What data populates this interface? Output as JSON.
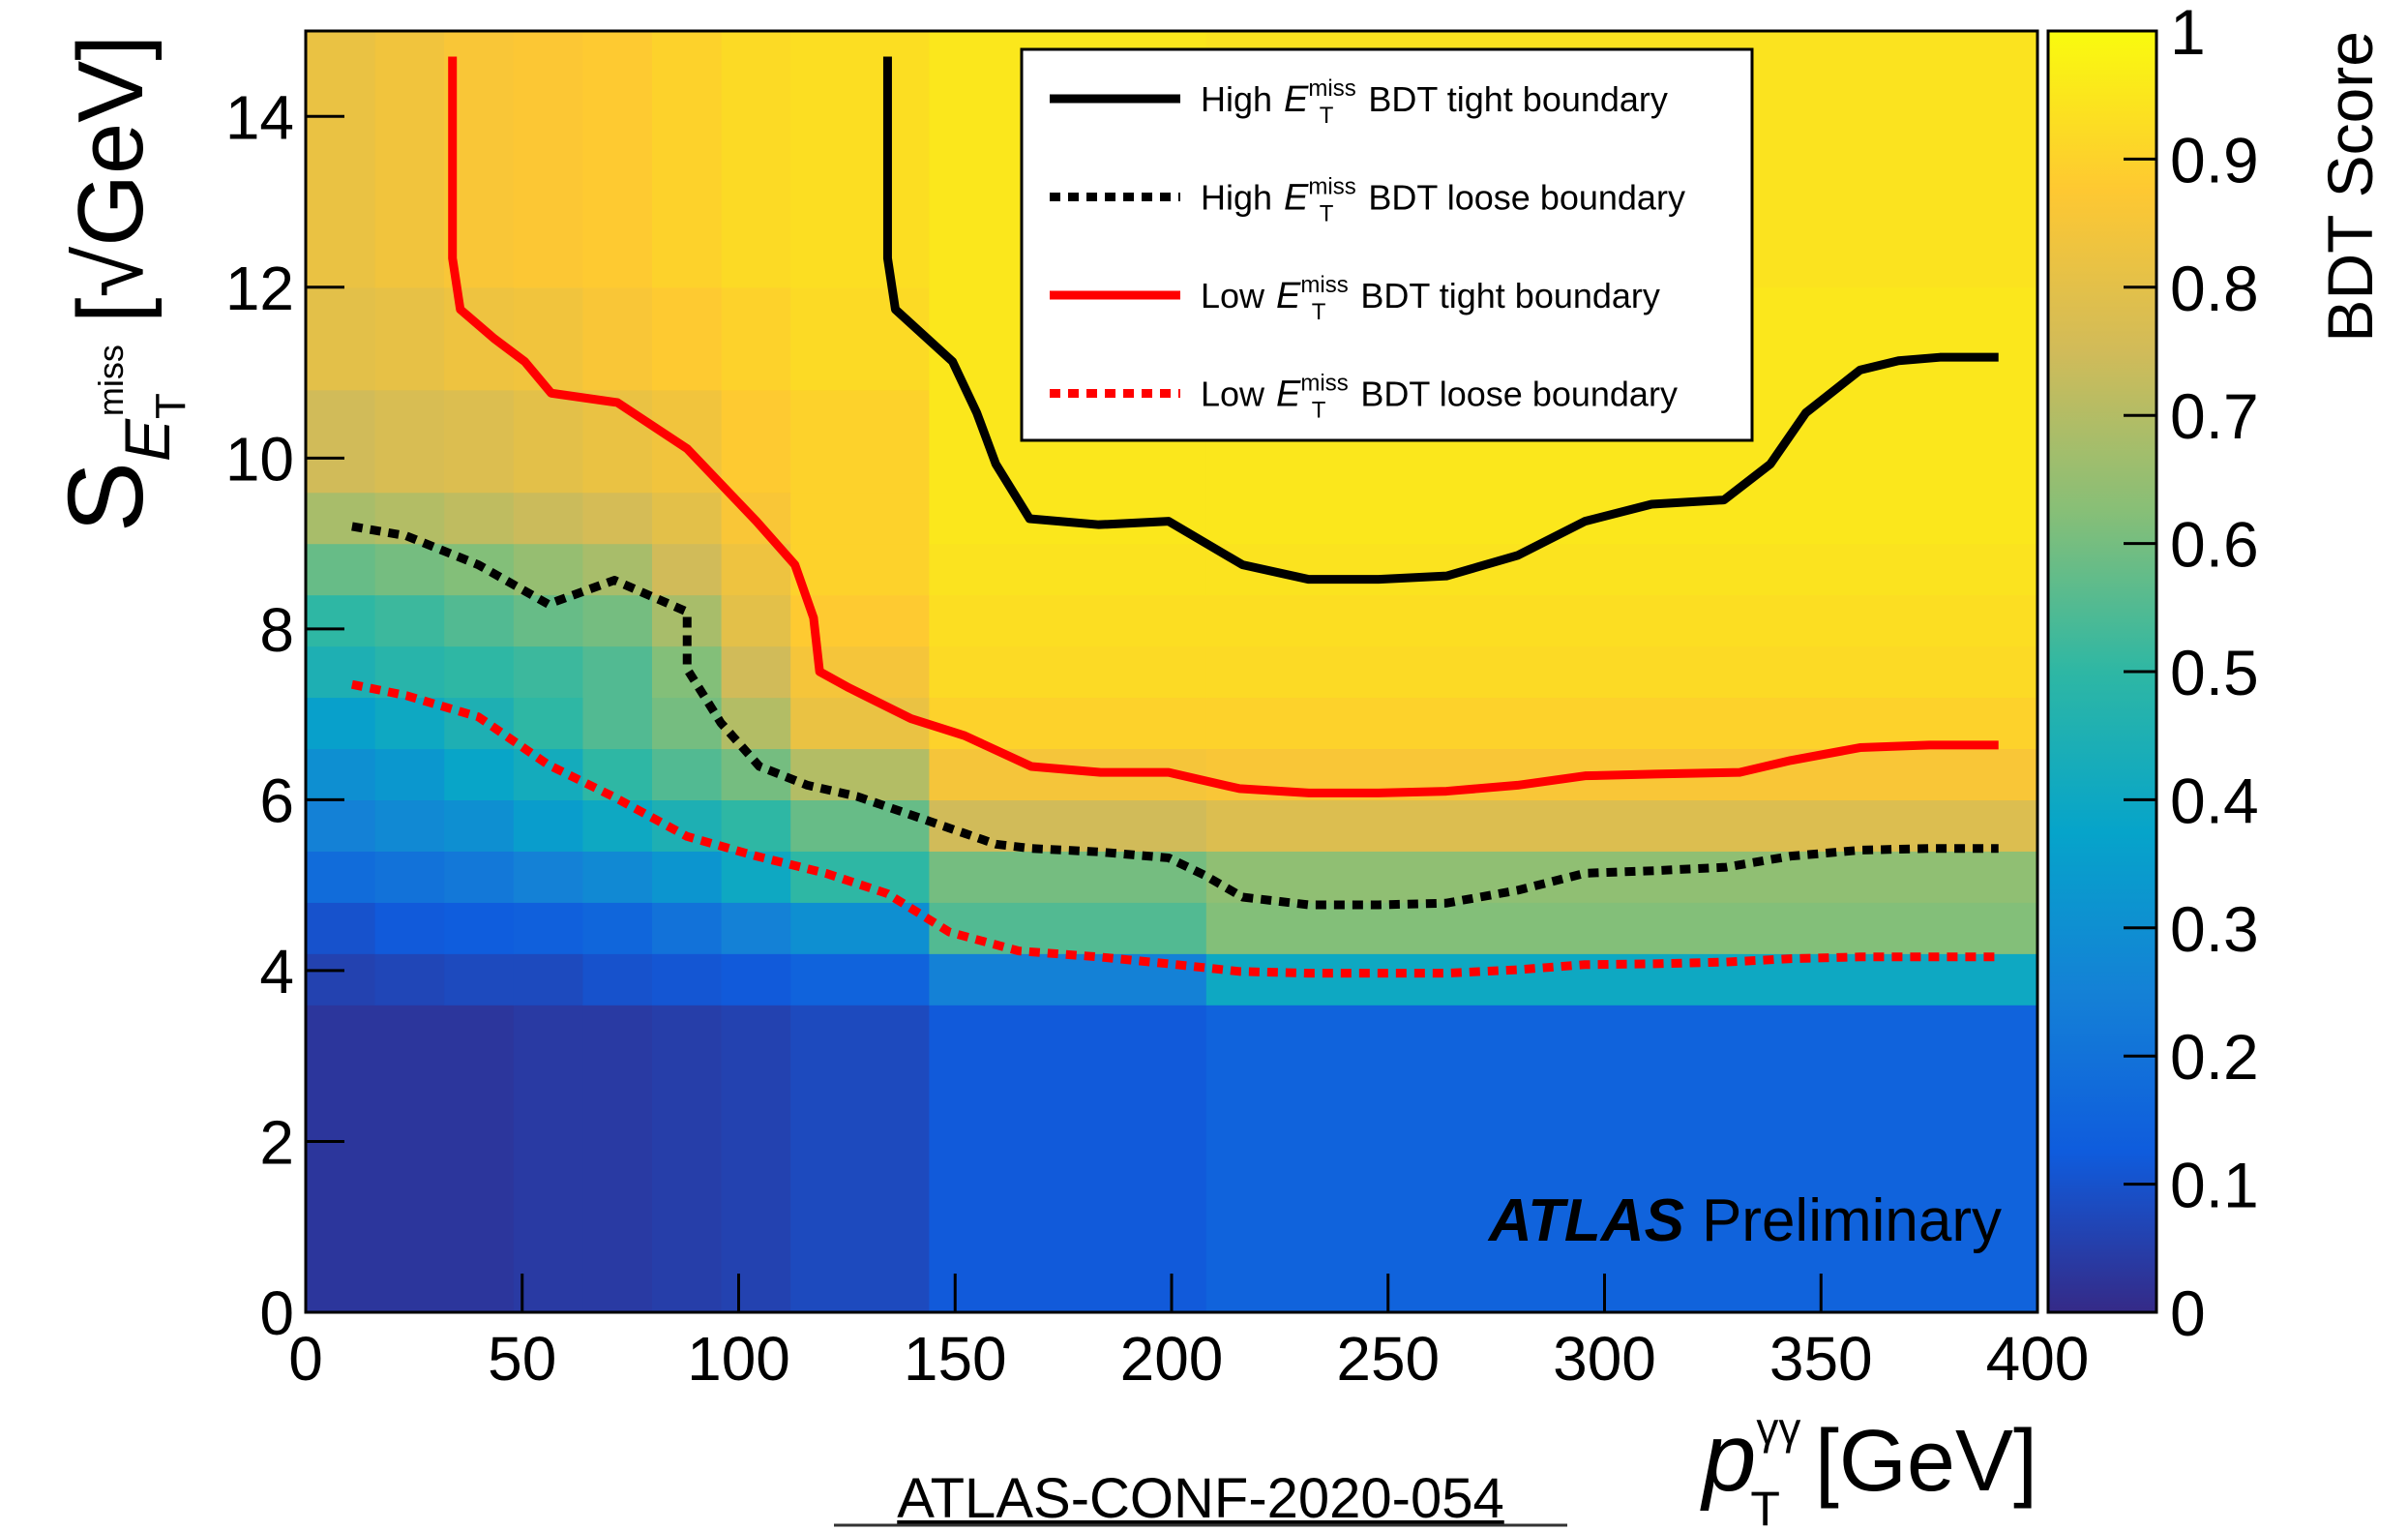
{
  "chart_data": {
    "type": "heatmap",
    "x_bins": [
      0,
      16,
      32,
      48,
      64,
      80,
      96,
      112,
      144,
      208,
      400
    ],
    "y_bins": [
      0,
      3.6,
      4.2,
      4.8,
      5.4,
      6.0,
      6.6,
      7.2,
      7.8,
      8.4,
      9.0,
      9.6,
      10.8,
      12,
      15
    ],
    "z": [
      [
        0.03,
        0.03,
        0.03,
        0.04,
        0.04,
        0.05,
        0.06,
        0.08,
        0.12,
        0.15
      ],
      [
        0.06,
        0.07,
        0.08,
        0.08,
        0.1,
        0.11,
        0.12,
        0.15,
        0.25,
        0.4
      ],
      [
        0.1,
        0.12,
        0.13,
        0.14,
        0.16,
        0.2,
        0.25,
        0.3,
        0.55,
        0.62
      ],
      [
        0.18,
        0.2,
        0.22,
        0.25,
        0.28,
        0.32,
        0.4,
        0.5,
        0.6,
        0.64
      ],
      [
        0.25,
        0.28,
        0.3,
        0.35,
        0.4,
        0.45,
        0.5,
        0.58,
        0.75,
        0.78
      ],
      [
        0.3,
        0.33,
        0.38,
        0.42,
        0.5,
        0.55,
        0.6,
        0.7,
        0.85,
        0.86
      ],
      [
        0.36,
        0.4,
        0.45,
        0.5,
        0.55,
        0.6,
        0.7,
        0.82,
        0.9,
        0.9
      ],
      [
        0.45,
        0.48,
        0.5,
        0.52,
        0.55,
        0.62,
        0.75,
        0.85,
        0.92,
        0.92
      ],
      [
        0.5,
        0.52,
        0.55,
        0.58,
        0.6,
        0.68,
        0.8,
        0.88,
        0.93,
        0.93
      ],
      [
        0.58,
        0.6,
        0.62,
        0.65,
        0.68,
        0.75,
        0.83,
        0.9,
        0.94,
        0.94
      ],
      [
        0.68,
        0.7,
        0.72,
        0.74,
        0.76,
        0.8,
        0.86,
        0.9,
        0.95,
        0.95
      ],
      [
        0.75,
        0.77,
        0.78,
        0.8,
        0.82,
        0.84,
        0.88,
        0.9,
        0.95,
        0.95
      ],
      [
        0.8,
        0.81,
        0.83,
        0.84,
        0.86,
        0.88,
        0.9,
        0.92,
        0.95,
        0.95
      ],
      [
        0.82,
        0.84,
        0.86,
        0.87,
        0.88,
        0.9,
        0.92,
        0.93,
        0.95,
        0.94
      ]
    ],
    "zlim": [
      0,
      1
    ],
    "colormap": [
      "#352a87",
      "#0f5cdd",
      "#1481d6",
      "#06a4ca",
      "#2eb7a4",
      "#87bf77",
      "#d1bb59",
      "#fec832",
      "#f9fb0e"
    ],
    "xlim": [
      0,
      400
    ],
    "ylim": [
      0,
      15
    ],
    "xticks": [
      0,
      50,
      100,
      150,
      200,
      250,
      300,
      350,
      400
    ],
    "yticks": [
      0,
      2,
      4,
      6,
      8,
      10,
      12,
      14
    ],
    "zticks": [
      0,
      0.1,
      0.2,
      0.3,
      0.4,
      0.5,
      0.6,
      0.7,
      0.8,
      0.9,
      1
    ],
    "x_label": {
      "main": "p",
      "sup": "γγ",
      "sub": "T",
      "unit": "[GeV]"
    },
    "y_label": {
      "main": "S",
      "sub": "E",
      "subsub": "T",
      "subsup": "miss",
      "unit": "[√GeV]"
    },
    "z_label": "BDT Score",
    "annotations": {
      "experiment": "ATLAS",
      "status": "Preliminary",
      "reference": "ATLAS-CONF-2020-054"
    },
    "series": [
      {
        "name": {
          "prefix": "High",
          "var": "E",
          "sub": "T",
          "sup": "miss",
          "suffix": "BDT tight boundary"
        },
        "color": "#000000",
        "dash": false,
        "x": [
          134.4,
          134.4,
          136.2,
          149.4,
          155,
          159.4,
          167.2,
          183.2,
          199.3,
          216.4,
          231.7,
          247.8,
          263.5,
          279.9,
          295.5,
          310.9,
          327.6,
          338.3,
          346.5,
          359,
          367.9,
          377.5,
          391
        ],
        "y": [
          14.7,
          12.34,
          11.74,
          11.13,
          10.53,
          9.93,
          9.29,
          9.22,
          9.26,
          8.75,
          8.58,
          8.58,
          8.62,
          8.86,
          9.26,
          9.46,
          9.51,
          9.93,
          10.53,
          11.03,
          11.14,
          11.18,
          11.18
        ]
      },
      {
        "name": {
          "prefix": "High",
          "var": "E",
          "sub": "T",
          "sup": "miss",
          "suffix": "BDT loose boundary"
        },
        "color": "#000000",
        "dash": true,
        "x": [
          10.7,
          23.2,
          39.9,
          56,
          71.3,
          88.1,
          88.1,
          95.9,
          104.8,
          115.9,
          127.3,
          144,
          159.4,
          167.6,
          183.2,
          199.3,
          207.5,
          216.4,
          231.7,
          247.8,
          263.5,
          279.9,
          295.5,
          311.6,
          328,
          343,
          359,
          375,
          391
        ],
        "y": [
          9.2,
          9.09,
          8.75,
          8.29,
          8.57,
          8.2,
          7.53,
          6.9,
          6.39,
          6.17,
          6.04,
          5.75,
          5.48,
          5.43,
          5.39,
          5.32,
          5.12,
          4.86,
          4.77,
          4.77,
          4.79,
          4.94,
          5.14,
          5.17,
          5.21,
          5.34,
          5.41,
          5.43,
          5.43
        ]
      },
      {
        "name": {
          "prefix": "Low",
          "var": "E",
          "sub": "T",
          "sup": "miss",
          "suffix": "BDT tight boundary"
        },
        "color": "#ff0000",
        "dash": false,
        "x": [
          33.9,
          33.9,
          35.7,
          43.5,
          50.6,
          56.7,
          72,
          88.1,
          104.1,
          113,
          117.3,
          118.7,
          125.5,
          139.8,
          152.2,
          167.6,
          183.6,
          199.3,
          215.7,
          231.7,
          247.8,
          263.5,
          279.9,
          295.5,
          311.6,
          331.2,
          343,
          359,
          375,
          391
        ],
        "y": [
          14.7,
          12.34,
          11.74,
          11.4,
          11.13,
          10.76,
          10.65,
          10.11,
          9.26,
          8.75,
          8.13,
          7.5,
          7.31,
          6.95,
          6.75,
          6.39,
          6.32,
          6.32,
          6.13,
          6.08,
          6.08,
          6.1,
          6.17,
          6.28,
          6.3,
          6.32,
          6.46,
          6.61,
          6.64,
          6.64
        ]
      },
      {
        "name": {
          "prefix": "Low",
          "var": "E",
          "sub": "T",
          "sup": "miss",
          "suffix": "BDT loose boundary"
        },
        "color": "#ff0000",
        "dash": true,
        "x": [
          10.7,
          23.2,
          39.9,
          56,
          71.3,
          88.1,
          104.1,
          120.1,
          134.4,
          148.7,
          164.7,
          183.2,
          199.3,
          215.7,
          231.7,
          247.8,
          263.5,
          279.9,
          295.5,
          311.6,
          328,
          343,
          359,
          391
        ],
        "y": [
          7.35,
          7.22,
          6.97,
          6.41,
          6.03,
          5.57,
          5.34,
          5.14,
          4.9,
          4.45,
          4.23,
          4.16,
          4.08,
          3.99,
          3.97,
          3.97,
          3.97,
          4.01,
          4.07,
          4.08,
          4.1,
          4.14,
          4.16,
          4.16
        ]
      }
    ]
  }
}
